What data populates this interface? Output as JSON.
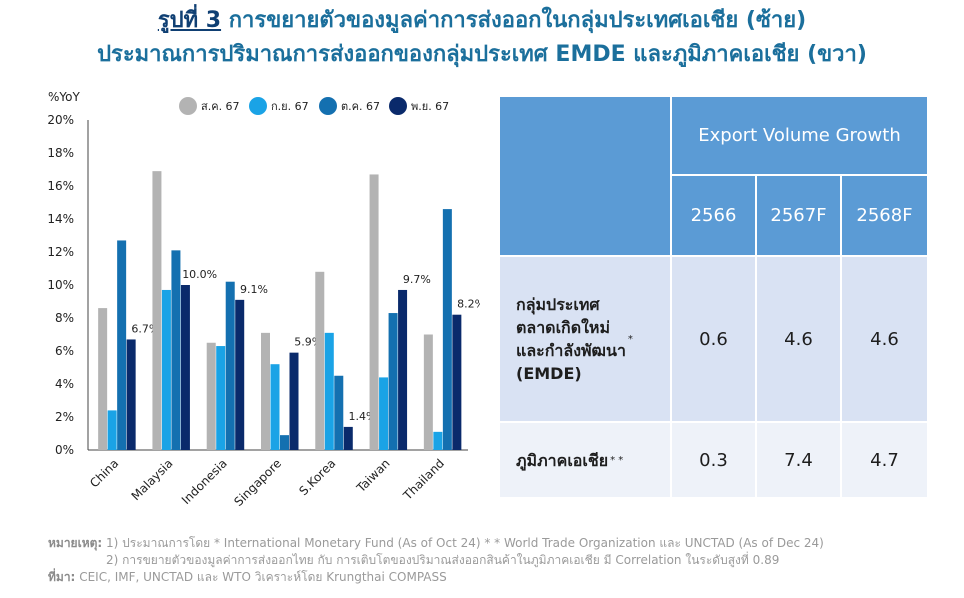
{
  "title": {
    "fig_no": "รูปที่ 3",
    "line1": "การขยายตัวของมูลค่าการส่งออกในกลุ่มประเทศเอเชีย (ซ้าย)",
    "line2": "ประมาณการปริมาณการส่งออกของกลุ่มประเทศ EMDE และภูมิภาคเอเชีย (ขวา)"
  },
  "chart_data": {
    "type": "bar",
    "ylabel": "%YoY",
    "ylim": [
      0,
      20
    ],
    "yticks": [
      "0%",
      "2%",
      "4%",
      "6%",
      "8%",
      "10%",
      "12%",
      "14%",
      "16%",
      "18%",
      "20%"
    ],
    "categories": [
      "China",
      "Malaysia",
      "Indonesia",
      "Singapore",
      "S.Korea",
      "Taiwan",
      "Thailand"
    ],
    "legend_position": "top-right",
    "series": [
      {
        "name": "ส.ค. 67",
        "color": "#b3b3b3",
        "values": [
          8.6,
          16.9,
          6.5,
          7.1,
          10.8,
          16.7,
          7.0
        ]
      },
      {
        "name": "ก.ย. 67",
        "color": "#1aa3e6",
        "values": [
          2.4,
          9.7,
          6.3,
          5.2,
          7.1,
          4.4,
          1.1
        ]
      },
      {
        "name": "ต.ค. 67",
        "color": "#1470b0",
        "values": [
          12.7,
          12.1,
          10.2,
          0.9,
          4.5,
          8.3,
          14.6
        ]
      },
      {
        "name": "พ.ย. 67",
        "color": "#0a2a6b",
        "values": [
          6.7,
          10.0,
          9.1,
          5.9,
          1.4,
          9.7,
          8.2
        ]
      }
    ],
    "data_labels": {
      "series": 3,
      "labels": [
        "6.7%",
        "10.0%",
        "9.1%",
        "5.9%",
        "1.4%",
        "9.7%",
        "8.2%"
      ]
    },
    "grid": false
  },
  "table": {
    "group_header": "Export Volume Growth",
    "years": [
      "2566",
      "2567F",
      "2568F"
    ],
    "rows": [
      {
        "label": "กลุ่มประเทศ\nตลาดเกิดใหม่\nและกำลังพัฒนา\n(EMDE)",
        "mark": "*",
        "values": [
          "0.6",
          "4.6",
          "4.6"
        ]
      },
      {
        "label": "ภูมิภาคเอเชีย",
        "mark": "* *",
        "values": [
          "0.3",
          "7.4",
          "4.7"
        ]
      }
    ]
  },
  "notes": {
    "label": "หมายเหตุ:",
    "line1": "1) ประมาณการโดย * International Monetary Fund (As of Oct 24) * * World Trade Organization และ UNCTAD (As of Dec 24)",
    "line2": "2) การขยายตัวของมูลค่าการส่งออกไทย กับ การเติบโตของปริมาณส่งออกสินค้าในภูมิภาคเอเชีย มี Correlation ในระดับสูงที่ 0.89",
    "source_label": "ที่มา:",
    "source": "CEIC, IMF, UNCTAD และ WTO วิเคราะห์โดย Krungthai COMPASS"
  }
}
